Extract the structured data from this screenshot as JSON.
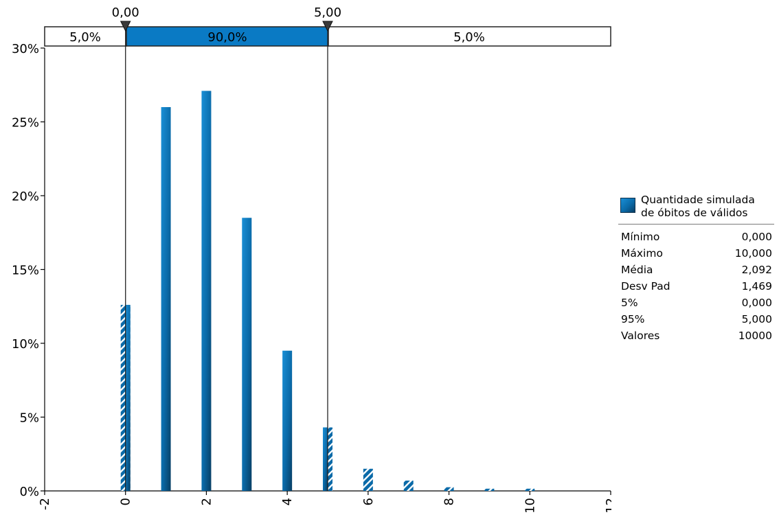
{
  "chart_data": {
    "type": "bar",
    "title": "",
    "xlabel": "",
    "ylabel": "",
    "x": [
      0,
      1,
      2,
      3,
      4,
      5,
      6,
      7,
      8,
      9,
      10
    ],
    "values": [
      12.6,
      26.0,
      27.1,
      18.5,
      9.5,
      4.3,
      1.5,
      0.7,
      0.25,
      0.15,
      0.15
    ],
    "value_unit": "%",
    "xlim": [
      -2,
      12
    ],
    "ylim": [
      0,
      30
    ],
    "x_tick_labels": [
      "-2",
      "0",
      "2",
      "4",
      "6",
      "8",
      "10",
      "12"
    ],
    "y_tick_labels": [
      "0%",
      "5%",
      "10%",
      "15%",
      "20%",
      "25%",
      "30%"
    ],
    "grid": false,
    "legend_position": "right",
    "series_name": "Quantidade simulada de óbitos de válidos",
    "delimiters": {
      "left_value": "0,00",
      "right_value": "5,00",
      "left_x": 0,
      "right_x": 5
    },
    "percentile_bar": {
      "left": "5,0%",
      "middle": "90,0%",
      "right": "5,0%"
    },
    "colors": {
      "bar": "#0a6aa8",
      "bar_light": "#1a8fd6",
      "bar_dark": "#083e63",
      "band": "#0a7ac4",
      "hatch": "#ffffff"
    }
  },
  "legend": {
    "name_line1": "Quantidade simulada",
    "name_line2": "de óbitos de válidos",
    "stats": [
      {
        "label": "Mínimo",
        "value": "0,000"
      },
      {
        "label": "Máximo",
        "value": "10,000"
      },
      {
        "label": "Média",
        "value": "2,092"
      },
      {
        "label": "Desv Pad",
        "value": "1,469"
      },
      {
        "label": "5%",
        "value": "0,000"
      },
      {
        "label": "95%",
        "value": "5,000"
      },
      {
        "label": "Valores",
        "value": "10000"
      }
    ]
  }
}
